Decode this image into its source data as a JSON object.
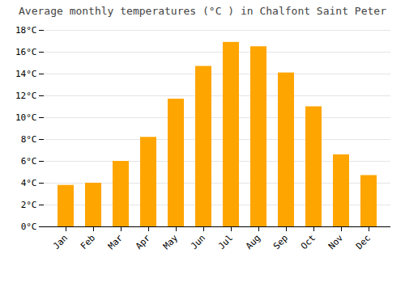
{
  "chart_data": {
    "type": "bar",
    "title": "Average monthly temperatures (°C ) in Chalfont Saint Peter",
    "categories": [
      "Jan",
      "Feb",
      "Mar",
      "Apr",
      "May",
      "Jun",
      "Jul",
      "Aug",
      "Sep",
      "Oct",
      "Nov",
      "Dec"
    ],
    "values": [
      3.8,
      4.0,
      6.0,
      8.2,
      11.7,
      14.7,
      16.9,
      16.5,
      14.1,
      11.0,
      6.6,
      4.7
    ],
    "color": "#FFA500",
    "ylim": [
      0,
      18
    ],
    "yticks": [
      {
        "value": 0,
        "label": "0°C"
      },
      {
        "value": 2,
        "label": "2°C"
      },
      {
        "value": 4,
        "label": "4°C"
      },
      {
        "value": 6,
        "label": "6°C"
      },
      {
        "value": 8,
        "label": "8°C"
      },
      {
        "value": 10,
        "label": "10°C"
      },
      {
        "value": 12,
        "label": "12°C"
      },
      {
        "value": 14,
        "label": "14°C"
      },
      {
        "value": 16,
        "label": "16°C"
      },
      {
        "value": 18,
        "label": "18°C"
      }
    ],
    "grid": true
  }
}
